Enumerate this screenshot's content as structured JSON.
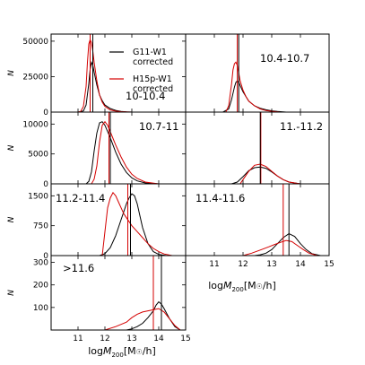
{
  "chart_data": {
    "type": "line",
    "xlabel": "log M200 [M☉/h]",
    "ylabel": "N",
    "xlim": [
      10,
      15
    ],
    "x_ticks": [
      11,
      12,
      13,
      14,
      15
    ],
    "legend": {
      "placement": "top-right of first panel",
      "entries": [
        {
          "label_line1": "G11-W1",
          "label_line2": "corrected",
          "color": "#000000"
        },
        {
          "label_line1": "H15p-W1",
          "label_line2": "corrected",
          "color": "#d40000"
        }
      ]
    },
    "panels": [
      {
        "label": "10-10.4",
        "ylim": [
          0,
          55000
        ],
        "y_ticks": [
          0,
          25000,
          50000
        ],
        "vlines": {
          "black": 11.55,
          "red": 11.45
        },
        "series": [
          {
            "name": "G11-W1",
            "x": [
              11.0,
              11.2,
              11.3,
              11.4,
              11.45,
              11.5,
              11.55,
              11.6,
              11.7,
              11.8,
              11.9,
              12.0,
              12.2,
              12.4,
              12.6,
              12.8,
              13.0,
              13.3
            ],
            "y": [
              0,
              800,
              5000,
              20000,
              30000,
              35000,
              33000,
              28000,
              19000,
              12000,
              8000,
              5000,
              2500,
              1200,
              500,
              200,
              50,
              0
            ]
          },
          {
            "name": "H15p-W1",
            "x": [
              11.0,
              11.1,
              11.2,
              11.3,
              11.35,
              11.4,
              11.45,
              11.5,
              11.55,
              11.6,
              11.7,
              11.8,
              11.9,
              12.0,
              12.2,
              12.4,
              12.6,
              12.8,
              13.0
            ],
            "y": [
              0,
              500,
              4000,
              18000,
              35000,
              48000,
              51000,
              49000,
              43000,
              35000,
              22000,
              12000,
              7000,
              4000,
              1500,
              700,
              300,
              100,
              0
            ]
          }
        ]
      },
      {
        "label": "10.4-10.7",
        "ylim": [
          0,
          50
        ],
        "y_ticks": [],
        "vlines": {
          "black": 11.85,
          "red": 11.8
        },
        "series": [
          {
            "name": "G11-W1",
            "x": [
              11.3,
              11.5,
              11.6,
              11.7,
              11.75,
              11.8,
              11.85,
              11.9,
              12.0,
              12.1,
              12.2,
              12.4,
              12.6,
              12.8,
              13.0,
              13.2,
              13.5
            ],
            "y": [
              0,
              2,
              8,
              16,
              19,
              20,
              19,
              17,
              13,
              10,
              7,
              4,
              2.5,
              1.5,
              0.8,
              0.4,
              0
            ]
          },
          {
            "name": "H15p-W1",
            "x": [
              11.4,
              11.5,
              11.6,
              11.65,
              11.7,
              11.75,
              11.8,
              11.85,
              11.9,
              12.0,
              12.1,
              12.2,
              12.4,
              12.6,
              12.8,
              13.0,
              13.3
            ],
            "y": [
              0,
              4,
              18,
              27,
              31,
              32,
              30,
              25,
              20,
              14,
              10,
              7,
              4,
              2,
              1,
              0.5,
              0
            ]
          }
        ]
      },
      {
        "label": "10.7-11",
        "ylim": [
          0,
          12000
        ],
        "y_ticks": [
          0,
          5000,
          10000
        ],
        "vlines": {
          "black": 12.2,
          "red": 12.15
        },
        "series": [
          {
            "name": "G11-W1",
            "x": [
              11.3,
              11.4,
              11.5,
              11.6,
              11.7,
              11.8,
              11.9,
              12.0,
              12.2,
              12.4,
              12.6,
              12.8,
              13.0,
              13.2,
              13.5,
              14.0
            ],
            "y": [
              0,
              400,
              2000,
              5500,
              8500,
              10200,
              10400,
              9800,
              7700,
              5300,
              3300,
              1900,
              1000,
              500,
              150,
              0
            ]
          },
          {
            "name": "H15p-W1",
            "x": [
              11.5,
              11.6,
              11.7,
              11.8,
              11.9,
              12.0,
              12.1,
              12.2,
              12.4,
              12.6,
              12.8,
              13.0,
              13.2,
              13.5,
              14.0
            ],
            "y": [
              0,
              800,
              3000,
              7000,
              9800,
              10400,
              9800,
              8700,
              6500,
              4500,
              2800,
              1600,
              900,
              300,
              0
            ]
          }
        ]
      },
      {
        "label": "11.-11.2",
        "ylim": [
          0,
          12000
        ],
        "y_ticks": [],
        "vlines": {
          "black": 12.6,
          "red": 12.62
        },
        "series": [
          {
            "name": "G11-W1",
            "x": [
              11.6,
              11.8,
              12.0,
              12.2,
              12.4,
              12.6,
              12.8,
              13.0,
              13.2,
              13.4,
              13.6,
              14.0
            ],
            "y": [
              0,
              300,
              1200,
              2200,
              2700,
              2800,
              2600,
              2000,
              1300,
              700,
              300,
              0
            ]
          },
          {
            "name": "H15p-W1",
            "x": [
              11.9,
              12.0,
              12.2,
              12.4,
              12.6,
              12.8,
              13.0,
              13.2,
              13.4,
              13.6,
              14.0
            ],
            "y": [
              0,
              700,
              2100,
              3100,
              3300,
              2900,
              2100,
              1300,
              700,
              300,
              0
            ]
          }
        ]
      },
      {
        "label": "11.2-11.4",
        "ylim": [
          0,
          1800
        ],
        "y_ticks": [
          0,
          750,
          1500
        ],
        "vlines": {
          "black": 12.95,
          "red": 12.85
        },
        "series": [
          {
            "name": "G11-W1",
            "x": [
              11.8,
              12.0,
              12.2,
              12.4,
              12.6,
              12.7,
              12.8,
              12.9,
              13.0,
              13.1,
              13.2,
              13.3,
              13.4,
              13.6,
              13.8,
              14.0,
              14.3
            ],
            "y": [
              0,
              50,
              200,
              500,
              900,
              1100,
              1300,
              1450,
              1550,
              1500,
              1300,
              1000,
              700,
              300,
              100,
              30,
              0
            ]
          },
          {
            "name": "H15p-W1",
            "x": [
              11.9,
              12.0,
              12.1,
              12.2,
              12.3,
              12.4,
              12.5,
              12.6,
              12.7,
              12.8,
              12.9,
              13.0,
              13.2,
              13.4,
              13.6,
              13.8,
              14.0,
              14.2,
              14.5
            ],
            "y": [
              0,
              600,
              1200,
              1450,
              1580,
              1500,
              1350,
              1200,
              1050,
              950,
              850,
              750,
              600,
              450,
              300,
              180,
              100,
              40,
              0
            ]
          }
        ]
      },
      {
        "label": "11.4-11.6",
        "ylim": [
          0,
          1800
        ],
        "y_ticks": [],
        "vlines": {
          "black": 13.6,
          "red": 13.4
        },
        "series": [
          {
            "name": "G11-W1",
            "x": [
              12.4,
              12.6,
              12.8,
              13.0,
              13.2,
              13.4,
              13.6,
              13.8,
              14.0,
              14.2,
              14.4,
              14.7
            ],
            "y": [
              0,
              20,
              60,
              150,
              300,
              450,
              550,
              480,
              300,
              150,
              50,
              0
            ]
          },
          {
            "name": "H15p-W1",
            "x": [
              12.0,
              12.3,
              12.6,
              12.9,
              13.1,
              13.3,
              13.5,
              13.7,
              13.9,
              14.1,
              14.3,
              14.6
            ],
            "y": [
              0,
              60,
              140,
              220,
              280,
              330,
              380,
              350,
              250,
              150,
              60,
              0
            ]
          }
        ]
      },
      {
        "label": ">11.6",
        "ylim": [
          0,
          330
        ],
        "y_ticks": [
          100,
          200,
          300
        ],
        "vlines": {
          "black": 14.1,
          "red": 13.8
        },
        "series": [
          {
            "name": "G11-W1",
            "x": [
              12.8,
              13.0,
              13.2,
              13.4,
              13.6,
              13.8,
              13.9,
              14.0,
              14.1,
              14.2,
              14.4,
              14.6,
              14.8
            ],
            "y": [
              0,
              5,
              15,
              30,
              55,
              85,
              110,
              125,
              115,
              95,
              50,
              15,
              0
            ]
          },
          {
            "name": "H15p-W1",
            "x": [
              12.0,
              12.4,
              12.8,
              13.0,
              13.2,
              13.4,
              13.6,
              13.8,
              14.0,
              14.2,
              14.4,
              14.6,
              14.8
            ],
            "y": [
              0,
              15,
              35,
              55,
              70,
              80,
              85,
              90,
              95,
              80,
              50,
              20,
              0
            ]
          }
        ]
      }
    ]
  }
}
